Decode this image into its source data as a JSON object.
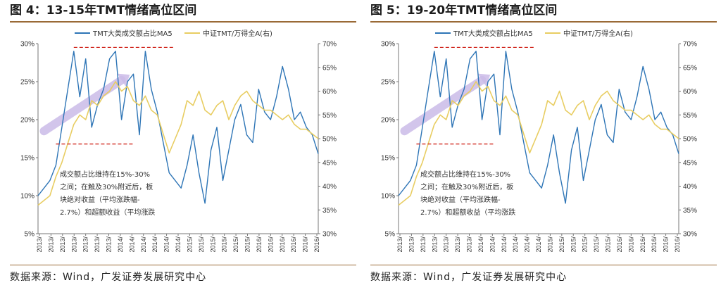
{
  "figures": [
    {
      "title": "图 4：13-15年TMT情绪高位区间",
      "source": "数据来源：Wind，广发证券发展研究中心"
    },
    {
      "title": "图 5：19-20年TMT情绪高位区间",
      "source": "数据来源：Wind，广发证券发展研究中心"
    }
  ],
  "colors": {
    "share": "#2e75b6",
    "ratio": "#e8cd62",
    "band": "#cbbbe8",
    "dash": "#d0251c",
    "rule": "#9a6a36"
  },
  "chart_data": [
    {
      "type": "line",
      "title": "",
      "legend": [
        "TMT大类成交额占比MA5",
        "中证TMT/万得全A(右)"
      ],
      "legend_position": "top",
      "ylim": [
        5,
        30
      ],
      "y_ticks": [
        "5%",
        "10%",
        "15%",
        "20%",
        "25%",
        "30%"
      ],
      "y2lim": [
        30,
        70
      ],
      "y2_ticks": [
        "30%",
        "35%",
        "40%",
        "45%",
        "50%",
        "55%",
        "60%",
        "65%",
        "70%"
      ],
      "x_tick_labels": [
        "2013/",
        "2013/",
        "2013/",
        "2013/",
        "2013/",
        "2013/",
        "2013/",
        "2014/",
        "2014/",
        "2014/",
        "2014/",
        "2014/",
        "2014/",
        "2015/",
        "2015/",
        "2015/",
        "2015/",
        "2015/",
        "2015/",
        "2016/",
        "2016/",
        "2016/",
        "2016/",
        "2016/",
        "2016/"
      ],
      "x_range": [
        "2013-01",
        "2016-12"
      ],
      "series": [
        {
          "name": "TMT大类成交额占比MA5",
          "axis": "left",
          "x": [
            "2013-01",
            "2013-02",
            "2013-03",
            "2013-04",
            "2013-05",
            "2013-06",
            "2013-07",
            "2013-08",
            "2013-09",
            "2013-10",
            "2013-11",
            "2013-12",
            "2014-01",
            "2014-02",
            "2014-03",
            "2014-04",
            "2014-05",
            "2014-06",
            "2014-07",
            "2014-08",
            "2014-09",
            "2014-10",
            "2014-11",
            "2014-12",
            "2015-01",
            "2015-02",
            "2015-03",
            "2015-04",
            "2015-05",
            "2015-06",
            "2015-07",
            "2015-08",
            "2015-09",
            "2015-10",
            "2015-11",
            "2015-12",
            "2016-01",
            "2016-02",
            "2016-03",
            "2016-04",
            "2016-05",
            "2016-06",
            "2016-07",
            "2016-08",
            "2016-09",
            "2016-10",
            "2016-11",
            "2016-12"
          ],
          "values": [
            10,
            11,
            12,
            14,
            19,
            24,
            29,
            23,
            28,
            19,
            22,
            24,
            28,
            29,
            20,
            25,
            26,
            18,
            29,
            24,
            21,
            17,
            13,
            12,
            11,
            14,
            18,
            13,
            9,
            16,
            19,
            12,
            16,
            20,
            22,
            18,
            17,
            24,
            21,
            20,
            23,
            27,
            24,
            20,
            21,
            19,
            18,
            15.5
          ]
        },
        {
          "name": "中证TMT/万得全A(右)",
          "axis": "right",
          "x": [
            "2013-01",
            "2013-02",
            "2013-03",
            "2013-04",
            "2013-05",
            "2013-06",
            "2013-07",
            "2013-08",
            "2013-09",
            "2013-10",
            "2013-11",
            "2013-12",
            "2014-01",
            "2014-02",
            "2014-03",
            "2014-04",
            "2014-05",
            "2014-06",
            "2014-07",
            "2014-08",
            "2014-09",
            "2014-10",
            "2014-11",
            "2014-12",
            "2015-01",
            "2015-02",
            "2015-03",
            "2015-04",
            "2015-05",
            "2015-06",
            "2015-07",
            "2015-08",
            "2015-09",
            "2015-10",
            "2015-11",
            "2015-12",
            "2016-01",
            "2016-02",
            "2016-03",
            "2016-04",
            "2016-05",
            "2016-06",
            "2016-07",
            "2016-08",
            "2016-09",
            "2016-10",
            "2016-11",
            "2016-12"
          ],
          "values": [
            36,
            37,
            38,
            42,
            45,
            49,
            53,
            55,
            54,
            58,
            57,
            59,
            60,
            62,
            60,
            61,
            58,
            57,
            59,
            56,
            55,
            51,
            47,
            50,
            53,
            58,
            57,
            60,
            56,
            55,
            57,
            58,
            54,
            57,
            59,
            60,
            58,
            57,
            56,
            56,
            55,
            54,
            55,
            53,
            52,
            52,
            51,
            50
          ]
        }
      ],
      "annotations": [
        {
          "type": "hline_dashed",
          "axis": "left",
          "value": 29.5,
          "x_start": "2013-07",
          "x_end": "2014-12"
        },
        {
          "type": "hline_dashed",
          "axis": "left",
          "value": 16.8,
          "x_start": "2013-04",
          "x_end": "2014-05"
        },
        {
          "type": "band_arrow",
          "from": {
            "x": "2013-02",
            "y": 18.5
          },
          "to": {
            "x": "2014-03",
            "y": 25.2
          }
        },
        {
          "type": "text",
          "lines": [
            "成交额占比维持在15%-30%",
            "之间；在触及30%附近后，板",
            "块绝对收益（平均涨跌幅-",
            "2.7%）和超额收益（平均涨跌"
          ]
        }
      ]
    },
    {
      "type": "line",
      "title": "",
      "legend": [
        "TMT大类成交额占比MA5",
        "中证TMT/万得全A(右)"
      ],
      "legend_position": "top",
      "ylim": [
        5,
        30
      ],
      "y_ticks": [
        "5%",
        "10%",
        "15%",
        "20%",
        "25%",
        "30%"
      ],
      "y2lim": [
        30,
        70
      ],
      "y2_ticks": [
        "30%",
        "35%",
        "40%",
        "45%",
        "50%",
        "55%",
        "60%",
        "65%",
        "70%"
      ],
      "x_tick_labels": [
        "2013/",
        "2013/",
        "2013/",
        "2013/",
        "2013/",
        "2013/",
        "2013/",
        "2014/",
        "2014/",
        "2014/",
        "2014/",
        "2014/",
        "2014/",
        "2015/",
        "2015/",
        "2015/",
        "2015/",
        "2015/",
        "2015/",
        "2016/",
        "2016/",
        "2016/",
        "2016/",
        "2016/",
        "2016/"
      ],
      "x_range": [
        "2013-01",
        "2016-12"
      ],
      "series": [
        {
          "name": "TMT大类成交额占比MA5",
          "axis": "left",
          "x": [
            "2013-01",
            "2013-02",
            "2013-03",
            "2013-04",
            "2013-05",
            "2013-06",
            "2013-07",
            "2013-08",
            "2013-09",
            "2013-10",
            "2013-11",
            "2013-12",
            "2014-01",
            "2014-02",
            "2014-03",
            "2014-04",
            "2014-05",
            "2014-06",
            "2014-07",
            "2014-08",
            "2014-09",
            "2014-10",
            "2014-11",
            "2014-12",
            "2015-01",
            "2015-02",
            "2015-03",
            "2015-04",
            "2015-05",
            "2015-06",
            "2015-07",
            "2015-08",
            "2015-09",
            "2015-10",
            "2015-11",
            "2015-12",
            "2016-01",
            "2016-02",
            "2016-03",
            "2016-04",
            "2016-05",
            "2016-06",
            "2016-07",
            "2016-08",
            "2016-09",
            "2016-10",
            "2016-11",
            "2016-12"
          ],
          "values": [
            10,
            11,
            12,
            14,
            19,
            24,
            29,
            23,
            28,
            19,
            22,
            24,
            28,
            29,
            20,
            25,
            26,
            18,
            29,
            24,
            21,
            17,
            13,
            12,
            11,
            14,
            18,
            13,
            9,
            16,
            19,
            12,
            16,
            20,
            22,
            18,
            17,
            24,
            21,
            20,
            23,
            27,
            24,
            20,
            21,
            19,
            18,
            15.5
          ]
        },
        {
          "name": "中证TMT/万得全A(右)",
          "axis": "right",
          "x": [
            "2013-01",
            "2013-02",
            "2013-03",
            "2013-04",
            "2013-05",
            "2013-06",
            "2013-07",
            "2013-08",
            "2013-09",
            "2013-10",
            "2013-11",
            "2013-12",
            "2014-01",
            "2014-02",
            "2014-03",
            "2014-04",
            "2014-05",
            "2014-06",
            "2014-07",
            "2014-08",
            "2014-09",
            "2014-10",
            "2014-11",
            "2014-12",
            "2015-01",
            "2015-02",
            "2015-03",
            "2015-04",
            "2015-05",
            "2015-06",
            "2015-07",
            "2015-08",
            "2015-09",
            "2015-10",
            "2015-11",
            "2015-12",
            "2016-01",
            "2016-02",
            "2016-03",
            "2016-04",
            "2016-05",
            "2016-06",
            "2016-07",
            "2016-08",
            "2016-09",
            "2016-10",
            "2016-11",
            "2016-12"
          ],
          "values": [
            36,
            37,
            38,
            42,
            45,
            49,
            53,
            55,
            54,
            58,
            57,
            59,
            60,
            62,
            60,
            61,
            58,
            57,
            59,
            56,
            55,
            51,
            47,
            50,
            53,
            58,
            57,
            60,
            56,
            55,
            57,
            58,
            54,
            57,
            59,
            60,
            58,
            57,
            56,
            56,
            55,
            54,
            55,
            53,
            52,
            52,
            51,
            50
          ]
        }
      ],
      "annotations": [
        {
          "type": "hline_dashed",
          "axis": "left",
          "value": 29.5,
          "x_start": "2013-07",
          "x_end": "2014-12"
        },
        {
          "type": "hline_dashed",
          "axis": "left",
          "value": 16.8,
          "x_start": "2013-04",
          "x_end": "2014-05"
        },
        {
          "type": "band_arrow",
          "from": {
            "x": "2013-02",
            "y": 18.5
          },
          "to": {
            "x": "2014-03",
            "y": 25.2
          }
        },
        {
          "type": "text",
          "lines": [
            "成交额占比维持在15%-30%",
            "之间；在触及30%附近后，板",
            "块绝对收益（平均涨跌幅-",
            "2.7%）和超额收益（平均涨跌"
          ]
        }
      ]
    }
  ]
}
